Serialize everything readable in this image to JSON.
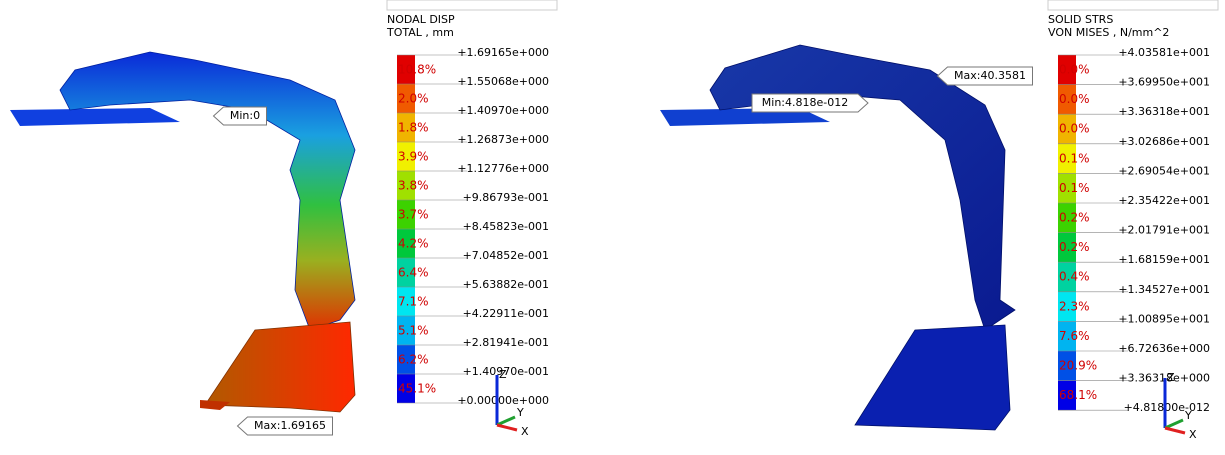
{
  "panels": [
    {
      "legend": {
        "title": [
          "NODAL DISP",
          "TOTAL , mm"
        ],
        "levels": [
          "+1.69165e+000",
          "+1.55068e+000",
          "+1.40970e+000",
          "+1.26873e+000",
          "+1.12776e+000",
          "+9.86793e-001",
          "+8.45823e-001",
          "+7.04852e-001",
          "+5.63882e-001",
          "+4.22911e-001",
          "+2.81941e-001",
          "+1.40970e-001",
          "+0.00000e+000"
        ],
        "bands": [
          {
            "pct": "10.8%",
            "color": "#e00000"
          },
          {
            "pct": "2.0%",
            "color": "#f05a00"
          },
          {
            "pct": "1.8%",
            "color": "#f0b400"
          },
          {
            "pct": "3.9%",
            "color": "#f0f000"
          },
          {
            "pct": "3.8%",
            "color": "#a0e000"
          },
          {
            "pct": "3.7%",
            "color": "#3cd200"
          },
          {
            "pct": "4.2%",
            "color": "#00c83c"
          },
          {
            "pct": "6.4%",
            "color": "#00d2a0"
          },
          {
            "pct": "7.1%",
            "color": "#00e6f0"
          },
          {
            "pct": "5.1%",
            "color": "#00b4f0"
          },
          {
            "pct": "6.2%",
            "color": "#0050e6"
          },
          {
            "pct": "45.1%",
            "color": "#0000e6"
          }
        ]
      },
      "min_label": "Min:0",
      "max_label": "Max:1.69165",
      "triad": [
        "Z",
        "Y",
        "X"
      ]
    },
    {
      "legend": {
        "title": [
          "SOLID STRS",
          "VON MISES , N/mm^2"
        ],
        "levels": [
          "+4.03581e+001",
          "+3.69950e+001",
          "+3.36318e+001",
          "+3.02686e+001",
          "+2.69054e+001",
          "+2.35422e+001",
          "+2.01791e+001",
          "+1.68159e+001",
          "+1.34527e+001",
          "+1.00895e+001",
          "+6.72636e+000",
          "+3.36318e+000",
          "+4.81800e-012"
        ],
        "bands": [
          {
            "pct": "0.0%",
            "color": "#e00000"
          },
          {
            "pct": "0.0%",
            "color": "#f05a00"
          },
          {
            "pct": "0.0%",
            "color": "#f0b400"
          },
          {
            "pct": "0.1%",
            "color": "#f0f000"
          },
          {
            "pct": "0.1%",
            "color": "#a0e000"
          },
          {
            "pct": "0.2%",
            "color": "#3cd200"
          },
          {
            "pct": "0.2%",
            "color": "#00c83c"
          },
          {
            "pct": "0.4%",
            "color": "#00d2a0"
          },
          {
            "pct": "2.3%",
            "color": "#00e6f0"
          },
          {
            "pct": "7.6%",
            "color": "#00b4f0"
          },
          {
            "pct": "20.9%",
            "color": "#0050e6"
          },
          {
            "pct": "68.1%",
            "color": "#0000e6"
          }
        ]
      },
      "max_label": "Max:40.3581",
      "min_label": "Min:4.818e-012",
      "triad": [
        "Z",
        "Y",
        "X"
      ]
    }
  ]
}
